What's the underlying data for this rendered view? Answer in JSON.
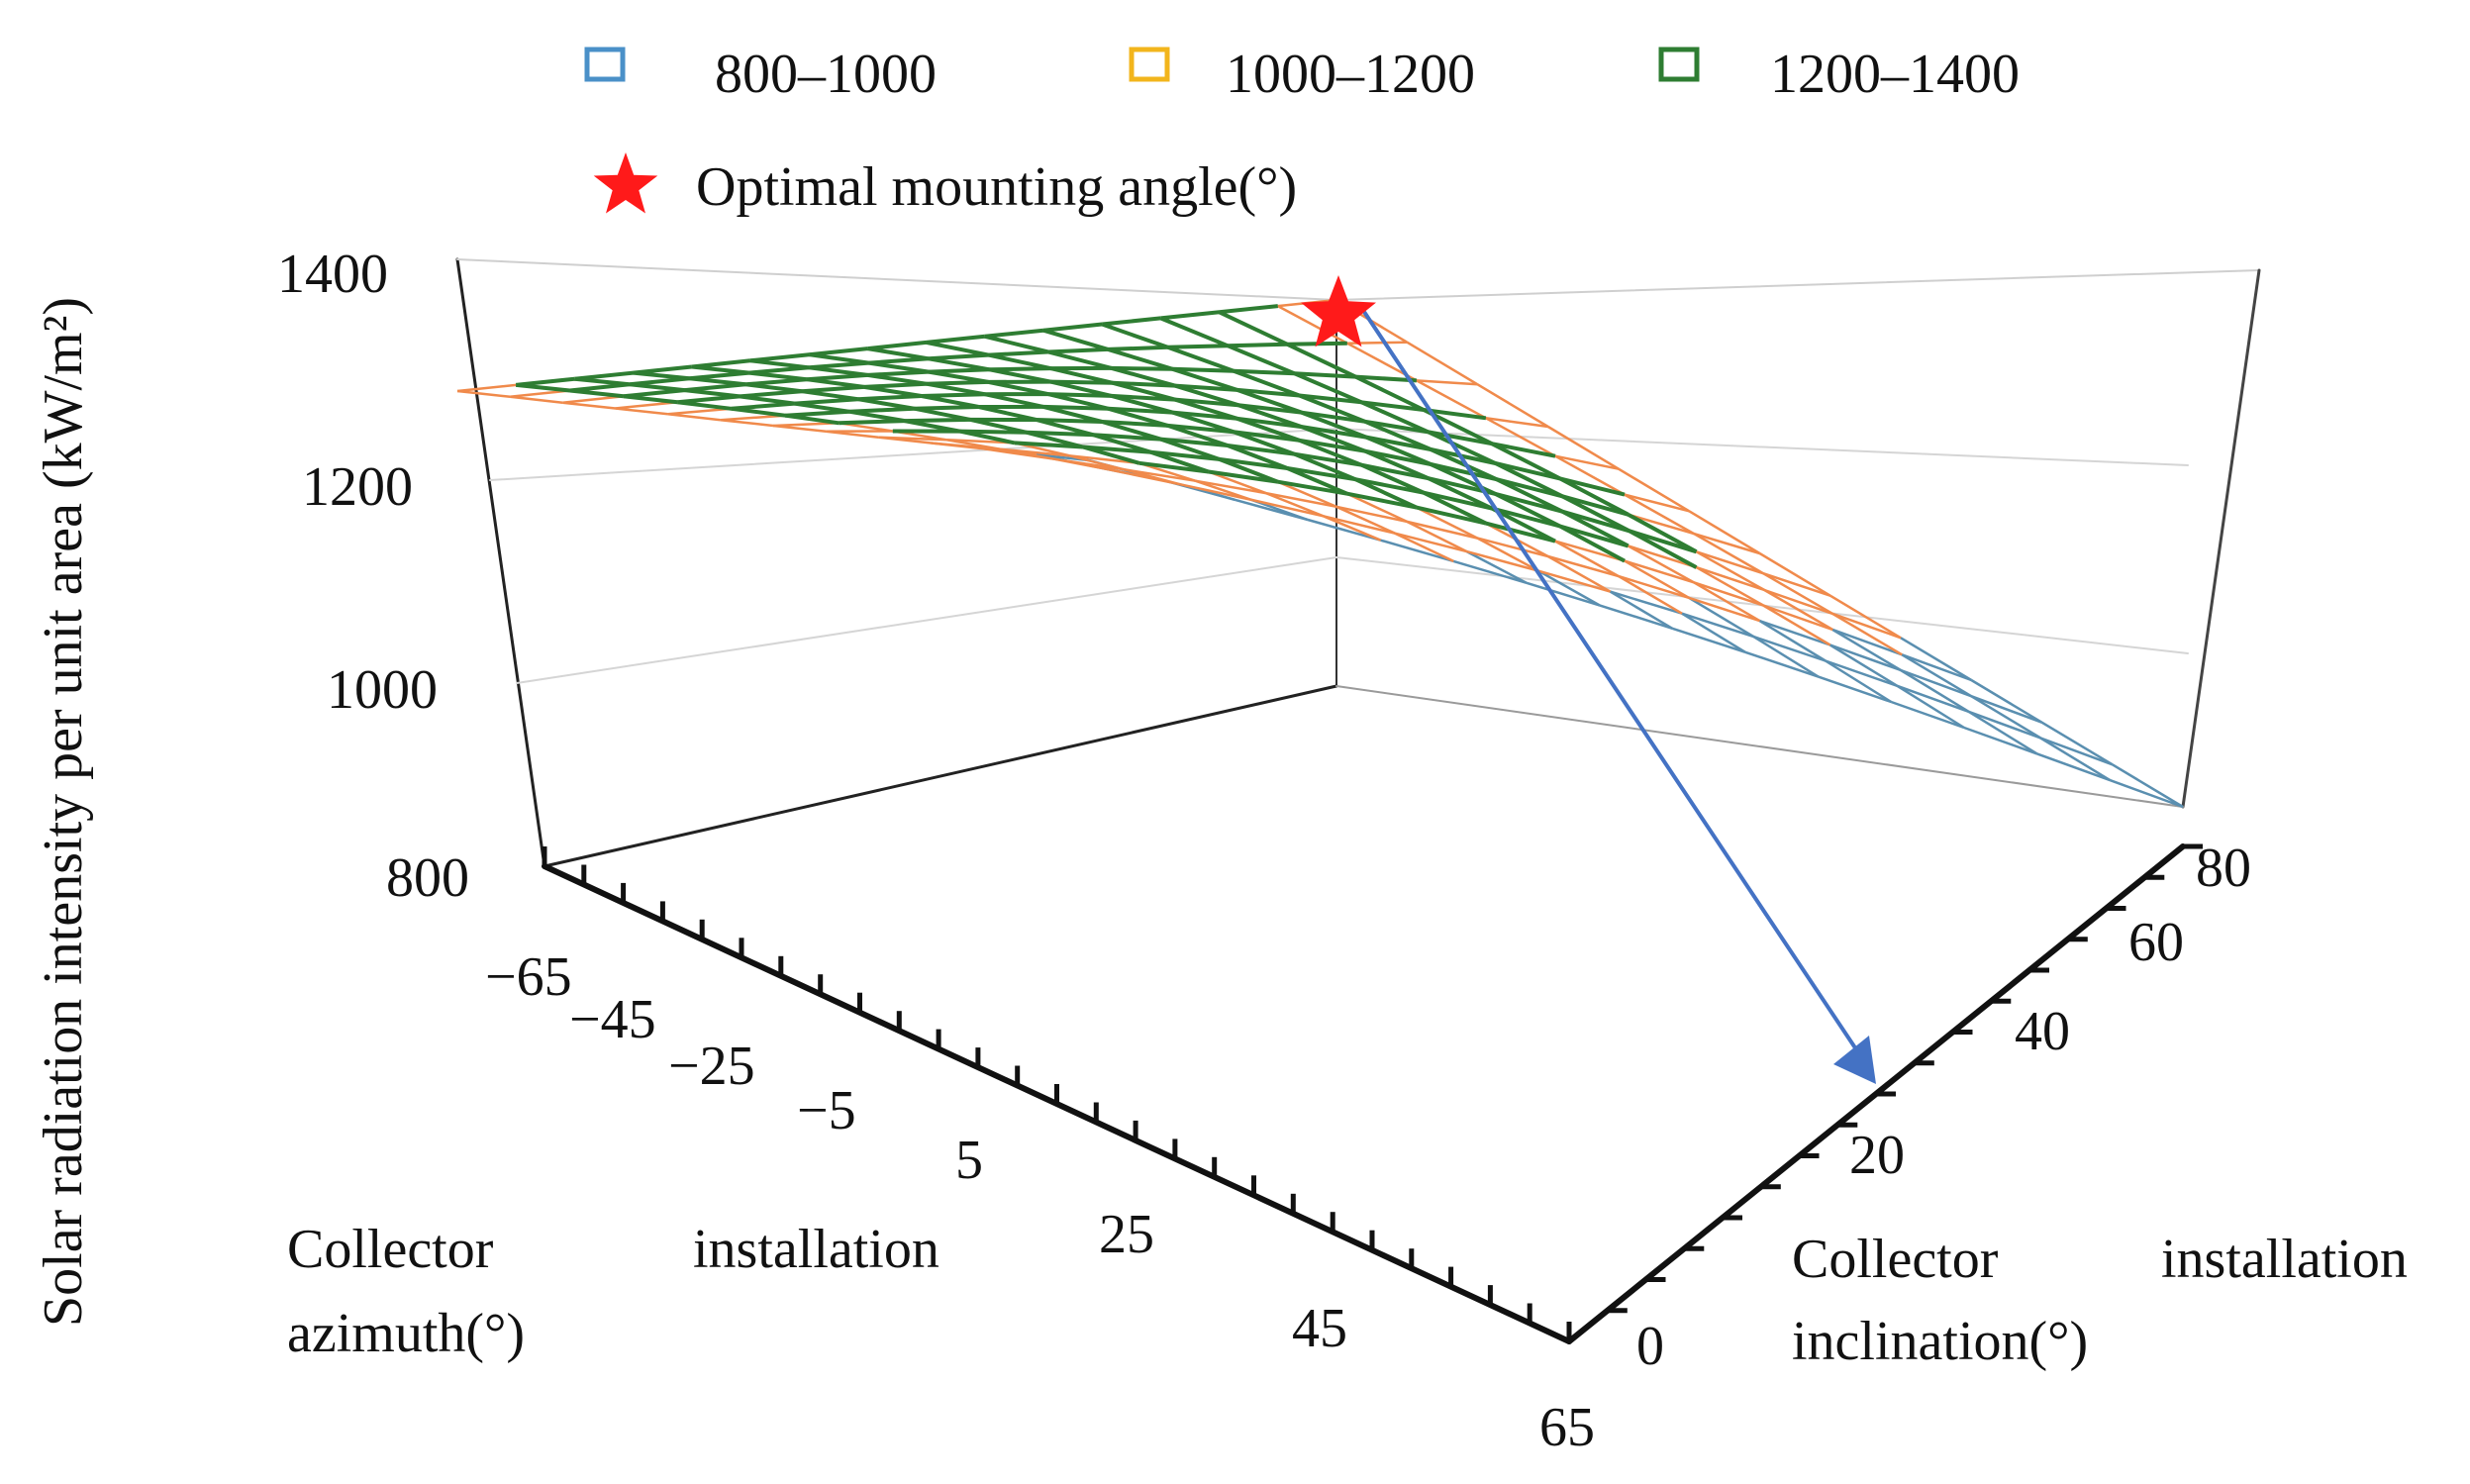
{
  "chart_data": {
    "type": "surface",
    "title": "",
    "zlabel": "Solar radiation intensity per unit area (kW/m²)",
    "xlabel": [
      "Collector",
      "installation",
      "azimuth(°)"
    ],
    "ylabel": [
      "Collector",
      "installation",
      "inclination(°)"
    ],
    "x_ticks": [
      "−65",
      "−45",
      "−25",
      "−5",
      "5",
      "25",
      "45",
      "65"
    ],
    "y_ticks": [
      "0",
      "20",
      "40",
      "60",
      "80"
    ],
    "z_ticks": [
      "800",
      "1000",
      "1200",
      "1400"
    ],
    "zlim": [
      800,
      1400
    ],
    "legend": {
      "placement": "top",
      "entries": [
        {
          "label": "800–1000",
          "color": "#4a90c8"
        },
        {
          "label": "1000–1200",
          "color": "#f2b51c"
        },
        {
          "label": "1200–1400",
          "color": "#2e7d32"
        }
      ],
      "marker_label": "Optimal mounting angle(°)",
      "marker_color": "#ff1a1a"
    },
    "band_colors": {
      "low": "#5a8fb0",
      "mid": "#f08a4b",
      "high": "#2e7d32"
    },
    "optimum": {
      "azimuth": 0,
      "inclination": 40,
      "value": 1360
    }
  }
}
